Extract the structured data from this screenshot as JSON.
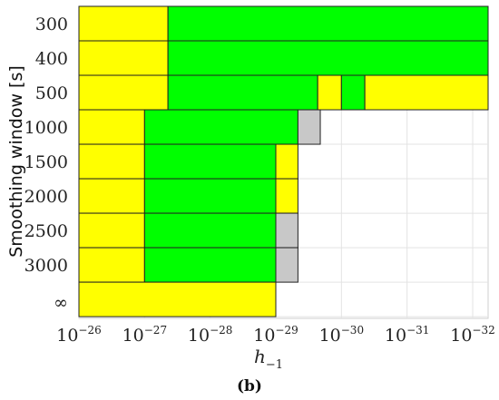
{
  "chart_data": {
    "type": "heatmap",
    "title": "",
    "subtitle": "(b)",
    "ylabel": "Smoothing window [s]",
    "xlabel": "h",
    "xlabel_subscript": "−1",
    "xscale": "log",
    "xaxis_reversed": true,
    "x_ticks": [
      {
        "base": "10",
        "exp": "−26",
        "value": 1e-26
      },
      {
        "base": "10",
        "exp": "−27",
        "value": 1e-27
      },
      {
        "base": "10",
        "exp": "−28",
        "value": 1e-28
      },
      {
        "base": "10",
        "exp": "−29",
        "value": 1e-29
      },
      {
        "base": "10",
        "exp": "−30",
        "value": 1e-30
      },
      {
        "base": "10",
        "exp": "−31",
        "value": 1e-31
      },
      {
        "base": "10",
        "exp": "−32",
        "value": 1e-32
      }
    ],
    "grid": true,
    "colors": {
      "yellow": "#ffff00",
      "green": "#00ff00",
      "gray": "#c8c8c8"
    },
    "rows": [
      {
        "label": "300",
        "cells": [
          {
            "from": 1e-26,
            "to": 4.4e-28,
            "color": "yellow"
          },
          {
            "from": 4.4e-28,
            "to": 1e-32,
            "color": "green"
          }
        ]
      },
      {
        "label": "400",
        "cells": [
          {
            "from": 1e-26,
            "to": 4.4e-28,
            "color": "yellow"
          },
          {
            "from": 4.4e-28,
            "to": 1e-32,
            "color": "green"
          }
        ]
      },
      {
        "label": "500",
        "cells": [
          {
            "from": 1e-26,
            "to": 4.4e-28,
            "color": "yellow"
          },
          {
            "from": 4.4e-28,
            "to": 2.3e-30,
            "color": "green"
          },
          {
            "from": 2.3e-30,
            "to": 1e-30,
            "color": "yellow"
          },
          {
            "from": 1e-30,
            "to": 4.4e-31,
            "color": "green"
          },
          {
            "from": 4.4e-31,
            "to": 1e-32,
            "color": "yellow"
          }
        ]
      },
      {
        "label": "1000",
        "cells": [
          {
            "from": 1e-26,
            "to": 1e-27,
            "color": "yellow"
          },
          {
            "from": 1e-27,
            "to": 4.6e-30,
            "color": "green"
          },
          {
            "from": 4.6e-30,
            "to": 2.1e-30,
            "color": "gray"
          }
        ]
      },
      {
        "label": "1500",
        "cells": [
          {
            "from": 1e-26,
            "to": 1e-27,
            "color": "yellow"
          },
          {
            "from": 1e-27,
            "to": 1e-29,
            "color": "green"
          },
          {
            "from": 1e-29,
            "to": 4.6e-30,
            "color": "yellow"
          }
        ]
      },
      {
        "label": "2000",
        "cells": [
          {
            "from": 1e-26,
            "to": 1e-27,
            "color": "yellow"
          },
          {
            "from": 1e-27,
            "to": 1e-29,
            "color": "green"
          },
          {
            "from": 1e-29,
            "to": 4.6e-30,
            "color": "yellow"
          }
        ]
      },
      {
        "label": "2500",
        "cells": [
          {
            "from": 1e-26,
            "to": 1e-27,
            "color": "yellow"
          },
          {
            "from": 1e-27,
            "to": 1e-29,
            "color": "green"
          },
          {
            "from": 1e-29,
            "to": 4.6e-30,
            "color": "gray"
          }
        ]
      },
      {
        "label": "3000",
        "cells": [
          {
            "from": 1e-26,
            "to": 1e-27,
            "color": "yellow"
          },
          {
            "from": 1e-27,
            "to": 1e-29,
            "color": "green"
          },
          {
            "from": 1e-29,
            "to": 4.6e-30,
            "color": "gray"
          }
        ]
      },
      {
        "label": "∞",
        "cells": [
          {
            "from": 1e-26,
            "to": 1e-29,
            "color": "yellow"
          }
        ]
      }
    ]
  }
}
